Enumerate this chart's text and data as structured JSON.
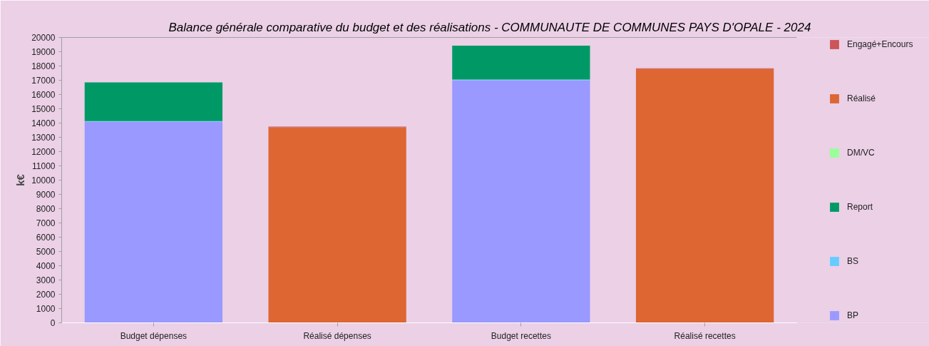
{
  "chart_data": {
    "type": "bar",
    "title": "Balance générale comparative du budget et des réalisations - COMMUNAUTE DE COMMUNES PAYS D'OPALE - 2024",
    "ylabel": "k€",
    "categories": [
      "Budget dépenses",
      "Réalisé dépenses",
      "Budget recettes",
      "Réalisé recettes"
    ],
    "stacked": true,
    "legend": "right",
    "ylim": [
      0,
      20000
    ],
    "yticks": [
      0,
      1000,
      2000,
      3000,
      4000,
      5000,
      6000,
      7000,
      8000,
      9000,
      10000,
      11000,
      12000,
      13000,
      14000,
      15000,
      16000,
      17000,
      18000,
      19000,
      20000
    ],
    "series": [
      {
        "name": "BP",
        "color": "#9999ff",
        "values": [
          14090,
          null,
          17000,
          null
        ]
      },
      {
        "name": "BS",
        "color": "#66ccff",
        "values": [
          50,
          null,
          50,
          null
        ]
      },
      {
        "name": "Report",
        "color": "#009966",
        "values": [
          2710,
          null,
          2370,
          null
        ]
      },
      {
        "name": "DM/VC",
        "color": "#99ff99",
        "values": [
          null,
          null,
          null,
          null
        ]
      },
      {
        "name": "Réalisé",
        "color": "#dd6633",
        "values": [
          null,
          13700,
          null,
          17790
        ]
      },
      {
        "name": "Engagé+Encours",
        "color": "#cc5555",
        "values": [
          null,
          50,
          null,
          50
        ]
      }
    ]
  }
}
